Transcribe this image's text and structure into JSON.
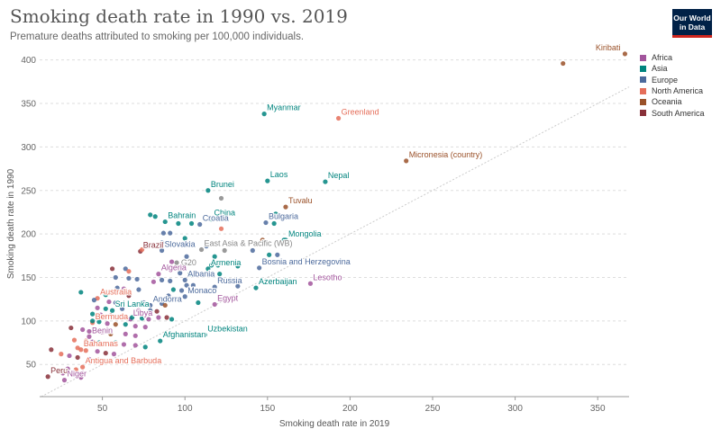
{
  "header": {
    "title": "Smoking death rate in 1990 vs. 2019",
    "subtitle": "Premature deaths attributed to smoking per 100,000 individuals.",
    "logo_line1": "Our World",
    "logo_line2": "in Data"
  },
  "legend": [
    {
      "name": "Africa",
      "color": "#a2559c"
    },
    {
      "name": "Asia",
      "color": "#00847e"
    },
    {
      "name": "Europe",
      "color": "#4c6a9c"
    },
    {
      "name": "North America",
      "color": "#e56e5a"
    },
    {
      "name": "Oceania",
      "color": "#9a5129"
    },
    {
      "name": "South America",
      "color": "#883039"
    }
  ],
  "chart_data": {
    "type": "scatter",
    "title": "Smoking death rate in 1990 vs. 2019",
    "xlabel": "Smoking death rate in 2019",
    "ylabel": "Smoking death rate in 1990",
    "xlim": [
      12,
      369
    ],
    "ylim": [
      13,
      410
    ],
    "xticks": [
      50,
      100,
      150,
      200,
      250,
      300,
      350
    ],
    "yticks": [
      50,
      100,
      150,
      200,
      250,
      300,
      350,
      400
    ],
    "grid": "horizontal dashed",
    "diagonal": "y = x reference line",
    "legend_position": "top-right",
    "colors": {
      "Africa": "#a2559c",
      "Asia": "#00847e",
      "Europe": "#4c6a9c",
      "North America": "#e56e5a",
      "Oceania": "#9a5129",
      "South America": "#883039",
      "Other": "#888888"
    },
    "points": [
      {
        "x": 366.5,
        "y": 407,
        "region": "Oceania",
        "label": "Kiribati"
      },
      {
        "x": 329,
        "y": 396,
        "region": "Oceania",
        "label": ""
      },
      {
        "x": 148,
        "y": 338,
        "region": "Asia",
        "label": "Myanmar"
      },
      {
        "x": 193,
        "y": 333,
        "region": "North America",
        "label": "Greenland"
      },
      {
        "x": 234,
        "y": 284,
        "region": "Oceania",
        "label": "Micronesia (country)"
      },
      {
        "x": 150,
        "y": 261,
        "region": "Asia",
        "label": "Laos"
      },
      {
        "x": 185,
        "y": 260,
        "region": "Asia",
        "label": "Nepal"
      },
      {
        "x": 114,
        "y": 250,
        "region": "Asia",
        "label": "Brunei"
      },
      {
        "x": 122,
        "y": 241,
        "region": "Other",
        "label": ""
      },
      {
        "x": 161,
        "y": 231,
        "region": "Oceania",
        "label": "Tuvalu"
      },
      {
        "x": 116,
        "y": 217,
        "region": "Asia",
        "label": "China"
      },
      {
        "x": 149,
        "y": 213,
        "region": "Europe",
        "label": "Bulgaria"
      },
      {
        "x": 88,
        "y": 214,
        "region": "Asia",
        "label": "Bahrain"
      },
      {
        "x": 109,
        "y": 211,
        "region": "Europe",
        "label": "Croatia"
      },
      {
        "x": 161,
        "y": 193,
        "region": "Asia",
        "label": "Mongolia"
      },
      {
        "x": 73,
        "y": 180,
        "region": "South America",
        "label": "Brazil"
      },
      {
        "x": 86,
        "y": 181,
        "region": "Europe",
        "label": "Slovakia"
      },
      {
        "x": 110,
        "y": 182,
        "region": "Other",
        "label": "East Asia & Pacific (WB)"
      },
      {
        "x": 96,
        "y": 160,
        "region": "Other",
        "label": "G20"
      },
      {
        "x": 114,
        "y": 160,
        "region": "Asia",
        "label": "Armenia"
      },
      {
        "x": 84,
        "y": 154,
        "region": "Africa",
        "label": "Algeria"
      },
      {
        "x": 145,
        "y": 161,
        "region": "Europe",
        "label": "Bosnia and Herzegovina"
      },
      {
        "x": 100,
        "y": 147,
        "region": "Europe",
        "label": "Albania"
      },
      {
        "x": 176,
        "y": 143,
        "region": "Africa",
        "label": "Lesotho"
      },
      {
        "x": 143,
        "y": 138,
        "region": "Asia",
        "label": "Azerbaijan"
      },
      {
        "x": 47,
        "y": 126,
        "region": "North America",
        "label": "Australia"
      },
      {
        "x": 118,
        "y": 139,
        "region": "Europe",
        "label": "Russia"
      },
      {
        "x": 100,
        "y": 128,
        "region": "Europe",
        "label": "Monaco"
      },
      {
        "x": 79,
        "y": 118,
        "region": "Europe",
        "label": "Andorra"
      },
      {
        "x": 118,
        "y": 119,
        "region": "Africa",
        "label": "Egypt"
      },
      {
        "x": 56,
        "y": 112,
        "region": "Asia",
        "label": "Sri Lanka"
      },
      {
        "x": 44,
        "y": 98,
        "region": "North America",
        "label": "Bermuda"
      },
      {
        "x": 67,
        "y": 102,
        "region": "Africa",
        "label": "Libya"
      },
      {
        "x": 112,
        "y": 84,
        "region": "Asia",
        "label": "Uzbekistan"
      },
      {
        "x": 42,
        "y": 82,
        "region": "Africa",
        "label": "Benin"
      },
      {
        "x": 85,
        "y": 77,
        "region": "Asia",
        "label": "Afghanistan"
      },
      {
        "x": 37,
        "y": 67,
        "region": "North America",
        "label": "Bahamas"
      },
      {
        "x": 38,
        "y": 47,
        "region": "North America",
        "label": "Antigua and Barbuda"
      },
      {
        "x": 17,
        "y": 36,
        "region": "South America",
        "label": "Peru"
      },
      {
        "x": 27,
        "y": 32,
        "region": "Africa",
        "label": "Niger"
      },
      {
        "x": 79,
        "y": 222,
        "region": "Asia",
        "label": ""
      },
      {
        "x": 82,
        "y": 220,
        "region": "Asia",
        "label": ""
      },
      {
        "x": 96,
        "y": 212,
        "region": "Asia",
        "label": ""
      },
      {
        "x": 154,
        "y": 212,
        "region": "Asia",
        "label": ""
      },
      {
        "x": 155,
        "y": 223,
        "region": "Asia",
        "label": ""
      },
      {
        "x": 121,
        "y": 217,
        "region": "Asia",
        "label": ""
      },
      {
        "x": 104,
        "y": 212,
        "region": "Asia",
        "label": ""
      },
      {
        "x": 122,
        "y": 206,
        "region": "North America",
        "label": ""
      },
      {
        "x": 87,
        "y": 201,
        "region": "Europe",
        "label": ""
      },
      {
        "x": 91,
        "y": 201,
        "region": "Europe",
        "label": ""
      },
      {
        "x": 100,
        "y": 195,
        "region": "Asia",
        "label": ""
      },
      {
        "x": 86,
        "y": 190,
        "region": "Europe",
        "label": ""
      },
      {
        "x": 77,
        "y": 186,
        "region": "South America",
        "label": ""
      },
      {
        "x": 74,
        "y": 182,
        "region": "North America",
        "label": ""
      },
      {
        "x": 113,
        "y": 186,
        "region": "Europe",
        "label": ""
      },
      {
        "x": 101,
        "y": 174,
        "region": "Europe",
        "label": ""
      },
      {
        "x": 118,
        "y": 174,
        "region": "Asia",
        "label": ""
      },
      {
        "x": 124,
        "y": 181,
        "region": "Other",
        "label": ""
      },
      {
        "x": 141,
        "y": 181,
        "region": "Europe",
        "label": ""
      },
      {
        "x": 147,
        "y": 193,
        "region": "Oceania",
        "label": ""
      },
      {
        "x": 160,
        "y": 193,
        "region": "Asia",
        "label": ""
      },
      {
        "x": 151,
        "y": 176,
        "region": "Asia",
        "label": ""
      },
      {
        "x": 156,
        "y": 176,
        "region": "Europe",
        "label": ""
      },
      {
        "x": 92,
        "y": 168,
        "region": "Africa",
        "label": ""
      },
      {
        "x": 95,
        "y": 167,
        "region": "Other",
        "label": ""
      },
      {
        "x": 104,
        "y": 166,
        "region": "Asia",
        "label": ""
      },
      {
        "x": 116,
        "y": 164,
        "region": "Asia",
        "label": ""
      },
      {
        "x": 120,
        "y": 164,
        "region": "Asia",
        "label": ""
      },
      {
        "x": 132,
        "y": 163,
        "region": "Asia",
        "label": ""
      },
      {
        "x": 56,
        "y": 160,
        "region": "South America",
        "label": ""
      },
      {
        "x": 64,
        "y": 160,
        "region": "Europe",
        "label": ""
      },
      {
        "x": 66,
        "y": 157,
        "region": "North America",
        "label": ""
      },
      {
        "x": 97,
        "y": 155,
        "region": "Europe",
        "label": ""
      },
      {
        "x": 103,
        "y": 154,
        "region": "Asia",
        "label": ""
      },
      {
        "x": 110,
        "y": 153,
        "region": "Europe",
        "label": ""
      },
      {
        "x": 121,
        "y": 154,
        "region": "Asia",
        "label": ""
      },
      {
        "x": 58,
        "y": 150,
        "region": "Europe",
        "label": ""
      },
      {
        "x": 66,
        "y": 149,
        "region": "Europe",
        "label": ""
      },
      {
        "x": 71,
        "y": 148,
        "region": "Europe",
        "label": ""
      },
      {
        "x": 81,
        "y": 145,
        "region": "Africa",
        "label": ""
      },
      {
        "x": 86,
        "y": 147,
        "region": "Europe",
        "label": ""
      },
      {
        "x": 91,
        "y": 146,
        "region": "Europe",
        "label": ""
      },
      {
        "x": 101,
        "y": 141,
        "region": "Europe",
        "label": ""
      },
      {
        "x": 105,
        "y": 141,
        "region": "Europe",
        "label": ""
      },
      {
        "x": 132,
        "y": 140,
        "region": "Europe",
        "label": ""
      },
      {
        "x": 59,
        "y": 138,
        "region": "Europe",
        "label": ""
      },
      {
        "x": 63,
        "y": 137,
        "region": "Africa",
        "label": ""
      },
      {
        "x": 72,
        "y": 136,
        "region": "Europe",
        "label": ""
      },
      {
        "x": 93,
        "y": 136,
        "region": "Asia",
        "label": ""
      },
      {
        "x": 98,
        "y": 135,
        "region": "Europe",
        "label": ""
      },
      {
        "x": 37,
        "y": 133,
        "region": "Asia",
        "label": ""
      },
      {
        "x": 52,
        "y": 130,
        "region": "Asia",
        "label": ""
      },
      {
        "x": 66,
        "y": 129,
        "region": "South America",
        "label": ""
      },
      {
        "x": 90,
        "y": 129,
        "region": "Europe",
        "label": ""
      },
      {
        "x": 45,
        "y": 124,
        "region": "Europe",
        "label": ""
      },
      {
        "x": 54,
        "y": 122,
        "region": "Africa",
        "label": ""
      },
      {
        "x": 58,
        "y": 121,
        "region": "Europe",
        "label": ""
      },
      {
        "x": 75,
        "y": 121,
        "region": "Europe",
        "label": ""
      },
      {
        "x": 86,
        "y": 120,
        "region": "Europe",
        "label": ""
      },
      {
        "x": 88,
        "y": 118,
        "region": "Oceania",
        "label": ""
      },
      {
        "x": 108,
        "y": 121,
        "region": "Asia",
        "label": ""
      },
      {
        "x": 47,
        "y": 115,
        "region": "Africa",
        "label": ""
      },
      {
        "x": 52,
        "y": 114,
        "region": "Asia",
        "label": ""
      },
      {
        "x": 62,
        "y": 114,
        "region": "Europe",
        "label": ""
      },
      {
        "x": 72,
        "y": 112,
        "region": "Africa",
        "label": ""
      },
      {
        "x": 79,
        "y": 112,
        "region": "Europe",
        "label": ""
      },
      {
        "x": 83,
        "y": 111,
        "region": "South America",
        "label": ""
      },
      {
        "x": 44,
        "y": 108,
        "region": "Asia",
        "label": ""
      },
      {
        "x": 49,
        "y": 107,
        "region": "Africa",
        "label": ""
      },
      {
        "x": 55,
        "y": 106,
        "region": "South America",
        "label": ""
      },
      {
        "x": 58,
        "y": 105,
        "region": "Africa",
        "label": ""
      },
      {
        "x": 68,
        "y": 104,
        "region": "Asia",
        "label": ""
      },
      {
        "x": 74,
        "y": 103,
        "region": "Asia",
        "label": ""
      },
      {
        "x": 78,
        "y": 102,
        "region": "Africa",
        "label": ""
      },
      {
        "x": 84,
        "y": 104,
        "region": "Africa",
        "label": ""
      },
      {
        "x": 89,
        "y": 104,
        "region": "South America",
        "label": ""
      },
      {
        "x": 92,
        "y": 102,
        "region": "Asia",
        "label": ""
      },
      {
        "x": 44,
        "y": 100,
        "region": "Asia",
        "label": ""
      },
      {
        "x": 48,
        "y": 99,
        "region": "Asia",
        "label": ""
      },
      {
        "x": 53,
        "y": 97,
        "region": "Africa",
        "label": ""
      },
      {
        "x": 58,
        "y": 96,
        "region": "Oceania",
        "label": ""
      },
      {
        "x": 64,
        "y": 96,
        "region": "Asia",
        "label": ""
      },
      {
        "x": 70,
        "y": 94,
        "region": "Africa",
        "label": ""
      },
      {
        "x": 76,
        "y": 93,
        "region": "Africa",
        "label": ""
      },
      {
        "x": 31,
        "y": 92,
        "region": "South America",
        "label": ""
      },
      {
        "x": 38,
        "y": 90,
        "region": "Africa",
        "label": ""
      },
      {
        "x": 42,
        "y": 88,
        "region": "Africa",
        "label": ""
      },
      {
        "x": 50,
        "y": 87,
        "region": "Africa",
        "label": ""
      },
      {
        "x": 55,
        "y": 85,
        "region": "Oceania",
        "label": ""
      },
      {
        "x": 64,
        "y": 85,
        "region": "Africa",
        "label": ""
      },
      {
        "x": 70,
        "y": 83,
        "region": "Africa",
        "label": ""
      },
      {
        "x": 33,
        "y": 78,
        "region": "North America",
        "label": ""
      },
      {
        "x": 40,
        "y": 77,
        "region": "North America",
        "label": ""
      },
      {
        "x": 44,
        "y": 76,
        "region": "Africa",
        "label": ""
      },
      {
        "x": 48,
        "y": 75,
        "region": "Asia",
        "label": ""
      },
      {
        "x": 53,
        "y": 74,
        "region": "Africa",
        "label": ""
      },
      {
        "x": 58,
        "y": 75,
        "region": "Asia",
        "label": ""
      },
      {
        "x": 63,
        "y": 73,
        "region": "Africa",
        "label": ""
      },
      {
        "x": 70,
        "y": 72,
        "region": "Africa",
        "label": ""
      },
      {
        "x": 76,
        "y": 70,
        "region": "Asia",
        "label": ""
      },
      {
        "x": 35,
        "y": 69,
        "region": "North America",
        "label": ""
      },
      {
        "x": 40,
        "y": 66,
        "region": "North America",
        "label": ""
      },
      {
        "x": 47,
        "y": 65,
        "region": "Africa",
        "label": ""
      },
      {
        "x": 52,
        "y": 63,
        "region": "South America",
        "label": ""
      },
      {
        "x": 57,
        "y": 62,
        "region": "Africa",
        "label": ""
      },
      {
        "x": 19,
        "y": 67,
        "region": "South America",
        "label": ""
      },
      {
        "x": 25,
        "y": 62,
        "region": "North America",
        "label": ""
      },
      {
        "x": 30,
        "y": 60,
        "region": "Africa",
        "label": ""
      },
      {
        "x": 35,
        "y": 58,
        "region": "South America",
        "label": ""
      },
      {
        "x": 42,
        "y": 56,
        "region": "Africa",
        "label": ""
      },
      {
        "x": 48,
        "y": 53,
        "region": "Africa",
        "label": ""
      },
      {
        "x": 29,
        "y": 45,
        "region": "Africa",
        "label": ""
      },
      {
        "x": 34,
        "y": 44,
        "region": "North America",
        "label": ""
      },
      {
        "x": 26,
        "y": 40,
        "region": "Africa",
        "label": ""
      },
      {
        "x": 38,
        "y": 40,
        "region": "Africa",
        "label": ""
      },
      {
        "x": 37,
        "y": 35,
        "region": "Africa",
        "label": ""
      }
    ]
  }
}
